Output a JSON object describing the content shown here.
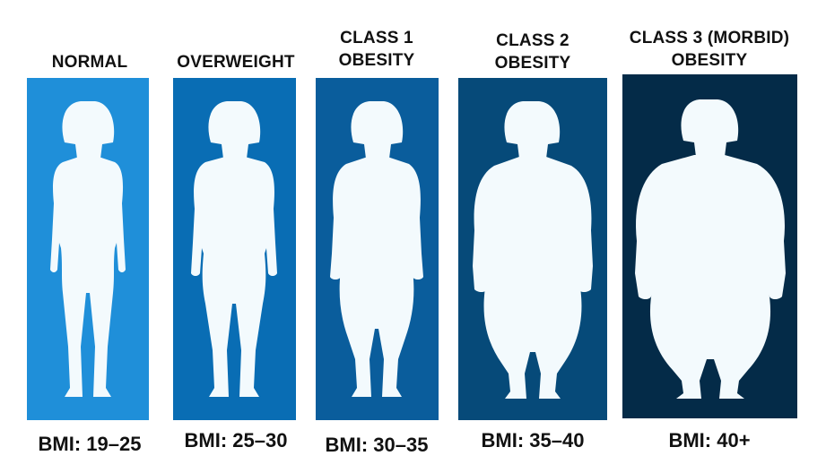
{
  "categories": [
    {
      "title_lines": [
        "NORMAL"
      ],
      "bmi": "BMI: 19–25",
      "color": "#1f8fd9"
    },
    {
      "title_lines": [
        "OVERWEIGHT"
      ],
      "bmi": "BMI: 25–30",
      "color": "#096db4"
    },
    {
      "title_lines": [
        "CLASS 1",
        "OBESITY"
      ],
      "bmi": "BMI: 30–35",
      "color": "#0a5d9c"
    },
    {
      "title_lines": [
        "CLASS 2",
        "OBESITY"
      ],
      "bmi": "BMI: 35–40",
      "color": "#064a79"
    },
    {
      "title_lines": [
        "CLASS 3 (MORBID)",
        "OBESITY"
      ],
      "bmi": "BMI: 40+",
      "color": "#042b48"
    }
  ],
  "figure_icon": "female-silhouette-icon",
  "silhouette_color": "#f3fafd"
}
